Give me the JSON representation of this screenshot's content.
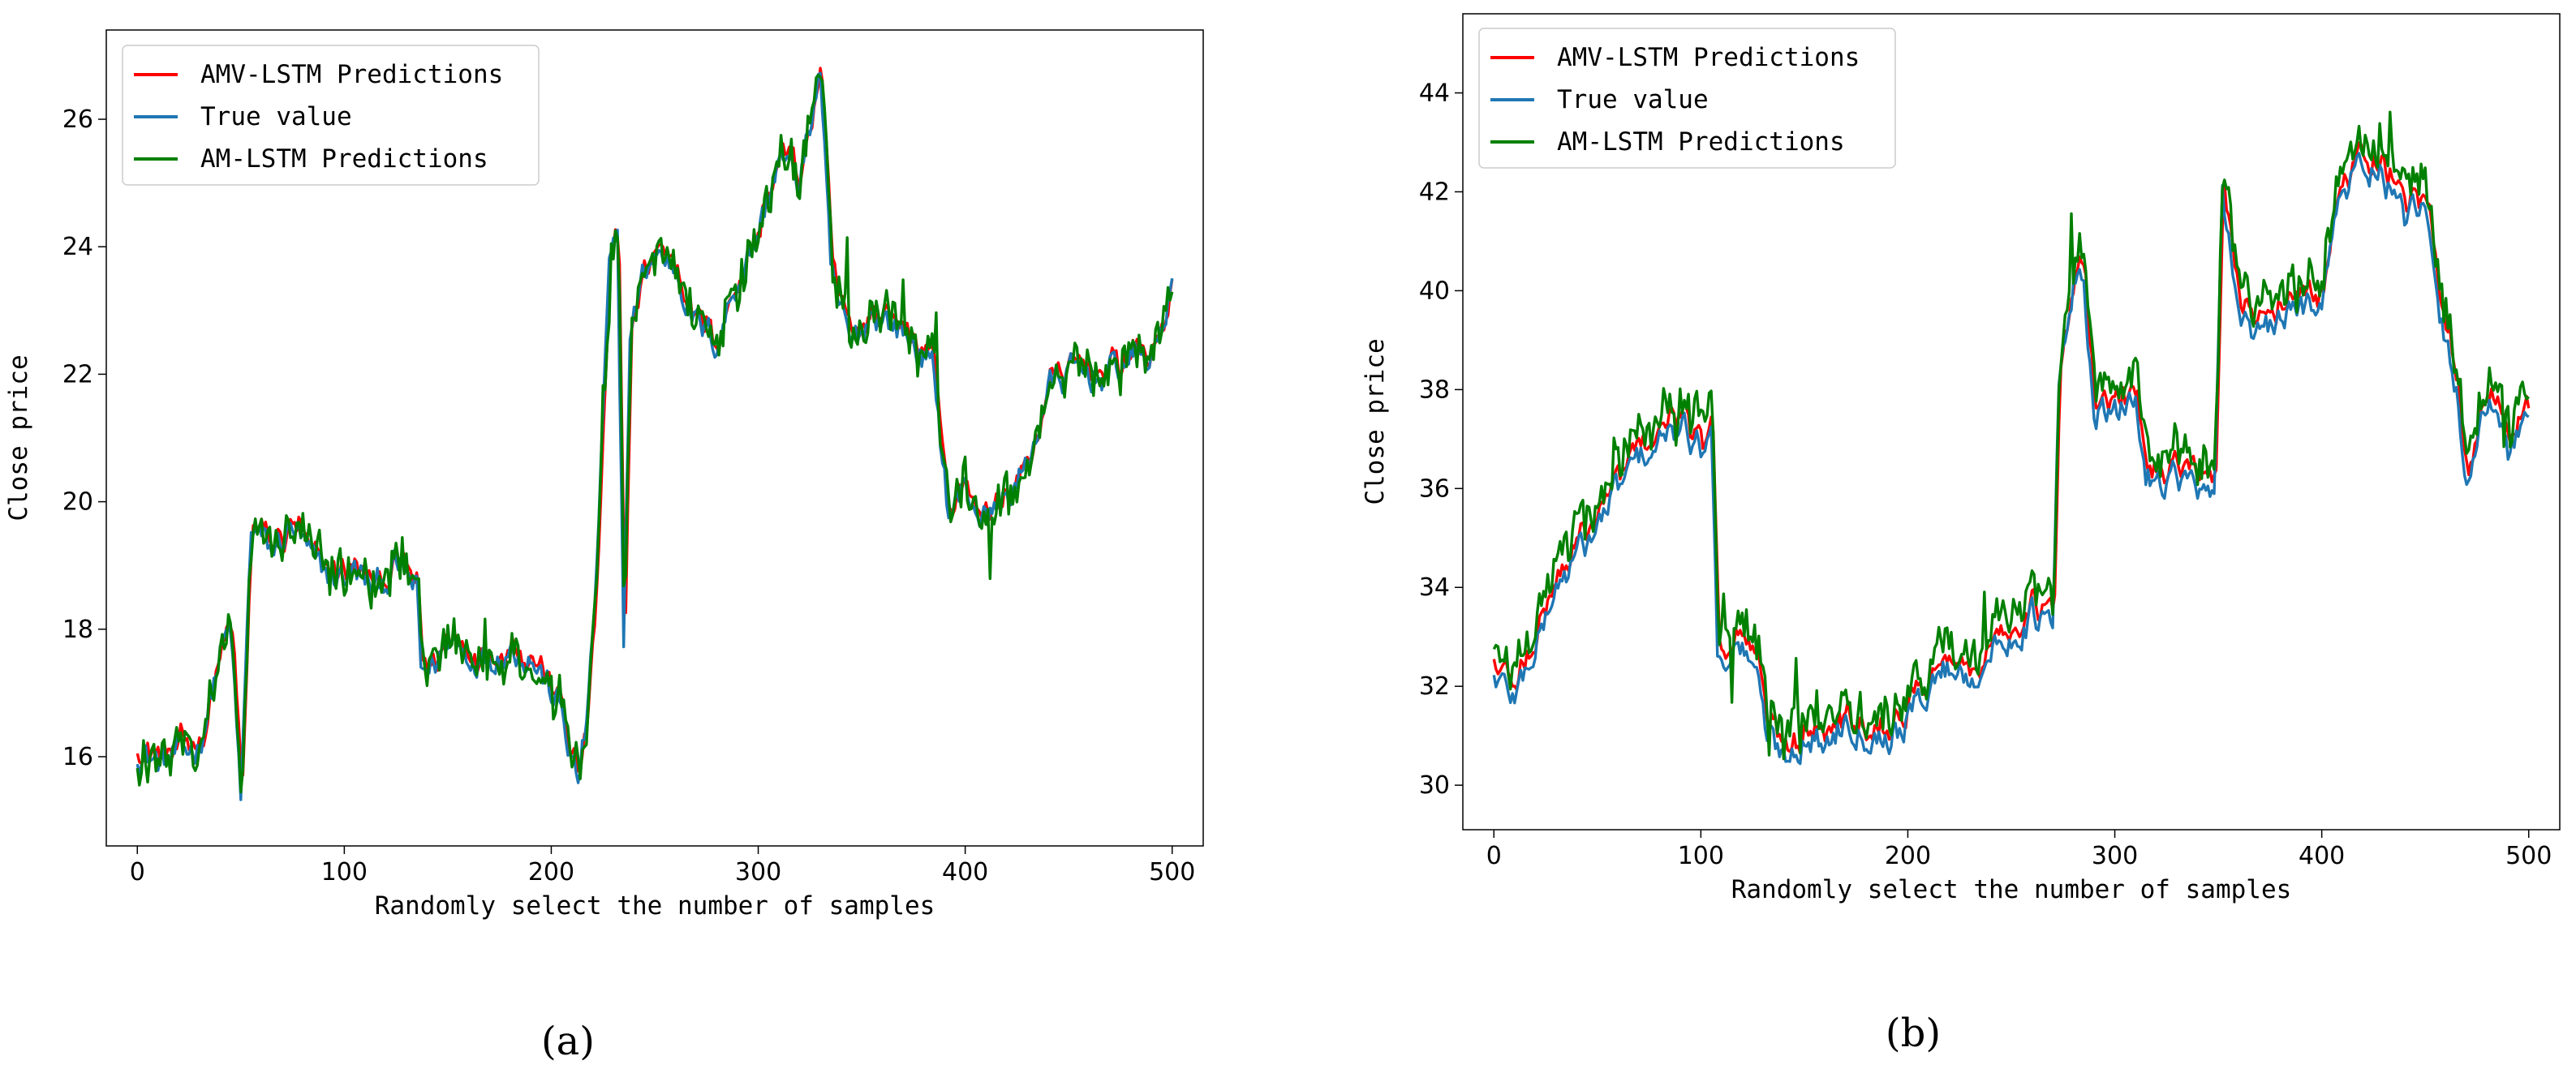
{
  "chart_data": [
    {
      "type": "line",
      "caption": "(a)",
      "xlabel": "Randomly select the number of samples",
      "ylabel": "Close price",
      "xlim": [
        -15,
        515
      ],
      "ylim": [
        14.6,
        27.4
      ],
      "xticks": [
        0,
        100,
        200,
        300,
        400,
        500
      ],
      "yticks": [
        16,
        18,
        20,
        22,
        24,
        26
      ],
      "legend_position": "top-left",
      "grid": false,
      "series": [
        {
          "name": "AMV-LSTM Predictions",
          "color": "#ff0000"
        },
        {
          "name": "True value",
          "color": "#1f77b4"
        },
        {
          "name": "AM-LSTM Predictions",
          "color": "#008000"
        }
      ],
      "anchors_true": [
        [
          0,
          16.1
        ],
        [
          10,
          15.9
        ],
        [
          20,
          16.0
        ],
        [
          30,
          16.2
        ],
        [
          40,
          17.6
        ],
        [
          45,
          18.0
        ],
        [
          50,
          15.3
        ],
        [
          55,
          19.6
        ],
        [
          65,
          19.2
        ],
        [
          75,
          19.6
        ],
        [
          85,
          19.0
        ],
        [
          95,
          18.8
        ],
        [
          105,
          18.9
        ],
        [
          115,
          18.6
        ],
        [
          125,
          19.0
        ],
        [
          135,
          18.6
        ],
        [
          137,
          17.3
        ],
        [
          145,
          17.5
        ],
        [
          150,
          17.9
        ],
        [
          160,
          17.6
        ],
        [
          170,
          17.6
        ],
        [
          180,
          17.7
        ],
        [
          190,
          17.6
        ],
        [
          200,
          17.0
        ],
        [
          205,
          16.7
        ],
        [
          210,
          15.9
        ],
        [
          213,
          15.6
        ],
        [
          218,
          16.8
        ],
        [
          222,
          19.0
        ],
        [
          228,
          23.6
        ],
        [
          232,
          24.0
        ],
        [
          235,
          17.9
        ],
        [
          238,
          22.6
        ],
        [
          245,
          23.6
        ],
        [
          250,
          23.9
        ],
        [
          260,
          23.7
        ],
        [
          270,
          22.8
        ],
        [
          280,
          22.5
        ],
        [
          290,
          23.5
        ],
        [
          300,
          24.2
        ],
        [
          310,
          25.4
        ],
        [
          320,
          25.0
        ],
        [
          330,
          26.8
        ],
        [
          335,
          23.5
        ],
        [
          345,
          22.4
        ],
        [
          355,
          23.0
        ],
        [
          365,
          22.8
        ],
        [
          375,
          22.5
        ],
        [
          385,
          22.0
        ],
        [
          392,
          19.8
        ],
        [
          400,
          20.2
        ],
        [
          410,
          19.7
        ],
        [
          420,
          20.1
        ],
        [
          430,
          20.5
        ],
        [
          440,
          21.8
        ],
        [
          450,
          22.0
        ],
        [
          460,
          22.0
        ],
        [
          470,
          22.0
        ],
        [
          480,
          22.3
        ],
        [
          490,
          22.2
        ],
        [
          500,
          23.4
        ]
      ]
    },
    {
      "type": "line",
      "caption": "(b)",
      "xlabel": "Randomly select the number of samples",
      "ylabel": "Close price",
      "xlim": [
        -15,
        515
      ],
      "ylim": [
        29.1,
        45.6
      ],
      "xticks": [
        0,
        100,
        200,
        300,
        400,
        500
      ],
      "yticks": [
        30,
        32,
        34,
        36,
        38,
        40,
        42,
        44
      ],
      "legend_position": "top-left",
      "grid": false,
      "series": [
        {
          "name": "AMV-LSTM Predictions",
          "color": "#ff0000"
        },
        {
          "name": "True value",
          "color": "#1f77b4"
        },
        {
          "name": "AM-LSTM Predictions",
          "color": "#008000"
        }
      ],
      "anchors_true": [
        [
          0,
          32.2
        ],
        [
          10,
          31.8
        ],
        [
          20,
          32.8
        ],
        [
          30,
          34.0
        ],
        [
          40,
          34.6
        ],
        [
          50,
          35.2
        ],
        [
          60,
          36.0
        ],
        [
          70,
          36.6
        ],
        [
          80,
          36.9
        ],
        [
          90,
          37.2
        ],
        [
          100,
          36.8
        ],
        [
          105,
          37.6
        ],
        [
          108,
          32.6
        ],
        [
          115,
          32.8
        ],
        [
          125,
          32.6
        ],
        [
          132,
          31.0
        ],
        [
          140,
          30.6
        ],
        [
          150,
          31.0
        ],
        [
          160,
          30.8
        ],
        [
          170,
          31.4
        ],
        [
          180,
          31.1
        ],
        [
          190,
          31.0
        ],
        [
          200,
          31.3
        ],
        [
          210,
          32.0
        ],
        [
          220,
          32.4
        ],
        [
          230,
          32.2
        ],
        [
          240,
          32.6
        ],
        [
          250,
          33.0
        ],
        [
          260,
          33.4
        ],
        [
          270,
          33.2
        ],
        [
          273,
          38.0
        ],
        [
          280,
          40.0
        ],
        [
          285,
          40.2
        ],
        [
          290,
          37.6
        ],
        [
          300,
          37.4
        ],
        [
          310,
          37.9
        ],
        [
          315,
          36.2
        ],
        [
          330,
          36.3
        ],
        [
          340,
          36.0
        ],
        [
          348,
          35.5
        ],
        [
          352,
          42.0
        ],
        [
          360,
          39.6
        ],
        [
          370,
          39.0
        ],
        [
          380,
          39.4
        ],
        [
          390,
          39.6
        ],
        [
          400,
          40.0
        ],
        [
          410,
          42.0
        ],
        [
          420,
          42.6
        ],
        [
          430,
          42.3
        ],
        [
          440,
          41.4
        ],
        [
          450,
          41.6
        ],
        [
          455,
          39.8
        ],
        [
          465,
          38.0
        ],
        [
          470,
          36.2
        ],
        [
          480,
          37.8
        ],
        [
          490,
          36.6
        ],
        [
          500,
          37.8
        ]
      ]
    }
  ]
}
